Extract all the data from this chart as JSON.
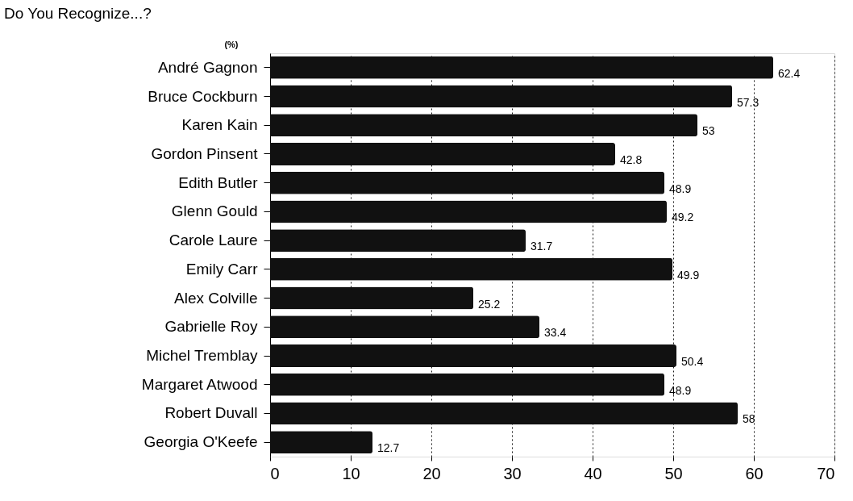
{
  "chart_data": {
    "type": "bar",
    "orientation": "horizontal",
    "title": "Do You Recognize...?",
    "ylabel": "(%)",
    "categories": [
      "André Gagnon",
      "Bruce Cockburn",
      "Karen Kain",
      "Gordon Pinsent",
      "Edith Butler",
      "Glenn Gould",
      "Carole Laure",
      "Emily Carr",
      "Alex Colville",
      "Gabrielle Roy",
      "Michel Tremblay",
      "Margaret Atwood",
      "Robert Duvall",
      "Georgia O'Keefe"
    ],
    "values": [
      62.4,
      57.3,
      53,
      42.8,
      48.9,
      49.2,
      31.7,
      49.9,
      25.2,
      33.4,
      50.4,
      48.9,
      58,
      12.7
    ],
    "color": "#111111",
    "xlim": [
      0,
      70
    ],
    "xticks": [
      0,
      10,
      20,
      30,
      40,
      50,
      60,
      70
    ],
    "grid": "x",
    "line_style": "dotted",
    "data_labels": true
  }
}
